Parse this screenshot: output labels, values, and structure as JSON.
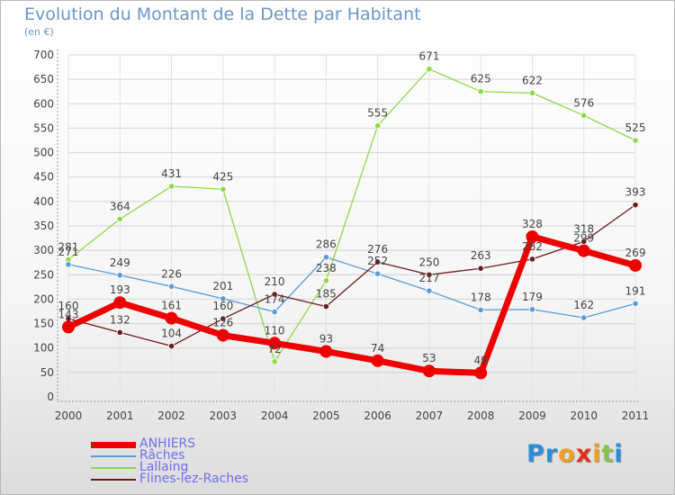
{
  "header": {
    "title": "Evolution du Montant de la Dette par Habitant",
    "subtitle": "(en €)"
  },
  "logo": {
    "letters": [
      "P",
      "r",
      "o",
      "x",
      "i",
      "t",
      "i"
    ],
    "colors": [
      "#2a8fd8",
      "#2a8fd8",
      "#f0a020",
      "#e03020",
      "#f0a020",
      "#8bc34a",
      "#2a8fd8"
    ]
  },
  "chart_data": {
    "type": "line",
    "title": "Evolution du Montant de la Dette par Habitant",
    "ylabel": "(en €)",
    "xlabel": "",
    "categories": [
      "2000",
      "2001",
      "2002",
      "2003",
      "2004",
      "2005",
      "2006",
      "2007",
      "2008",
      "2009",
      "2010",
      "2011"
    ],
    "ylim": [
      0,
      700
    ],
    "yticks": [
      0,
      50,
      100,
      150,
      200,
      250,
      300,
      350,
      400,
      450,
      500,
      550,
      600,
      650,
      700
    ],
    "grid": true,
    "legend_position": "bottom-left",
    "series": [
      {
        "name": "ANHIERS",
        "color": "#ee0000",
        "values": [
          143,
          193,
          161,
          126,
          110,
          93,
          74,
          53,
          49,
          328,
          299,
          269
        ],
        "labels": [
          "143",
          "193",
          "161",
          "126",
          "110",
          "93",
          "74",
          "53",
          "49",
          "328",
          "299",
          "269"
        ]
      },
      {
        "name": "Râches",
        "color": "#5b9bd5",
        "values": [
          271,
          249,
          226,
          201,
          174,
          286,
          252,
          217,
          178,
          179,
          162,
          191
        ],
        "labels": [
          "271",
          "249",
          "226",
          "201",
          "174",
          "286",
          "252",
          "217",
          "178",
          "179",
          "162",
          "191"
        ]
      },
      {
        "name": "Lallaing",
        "color": "#8fd84a",
        "values": [
          281,
          364,
          431,
          425,
          72,
          238,
          555,
          671,
          625,
          622,
          576,
          525
        ],
        "labels": [
          "281",
          "364",
          "431",
          "425",
          "72",
          "238",
          "555",
          "671",
          "625",
          "622",
          "576",
          "525"
        ]
      },
      {
        "name": "Flines-lez-Raches",
        "color": "#6b1d1d",
        "values": [
          160,
          132,
          104,
          160,
          210,
          185,
          276,
          250,
          263,
          282,
          318,
          393
        ],
        "labels": [
          "160",
          "132",
          "104",
          "160",
          "210",
          "185",
          "276",
          "250",
          "263",
          "282",
          "318",
          "393"
        ]
      }
    ]
  }
}
